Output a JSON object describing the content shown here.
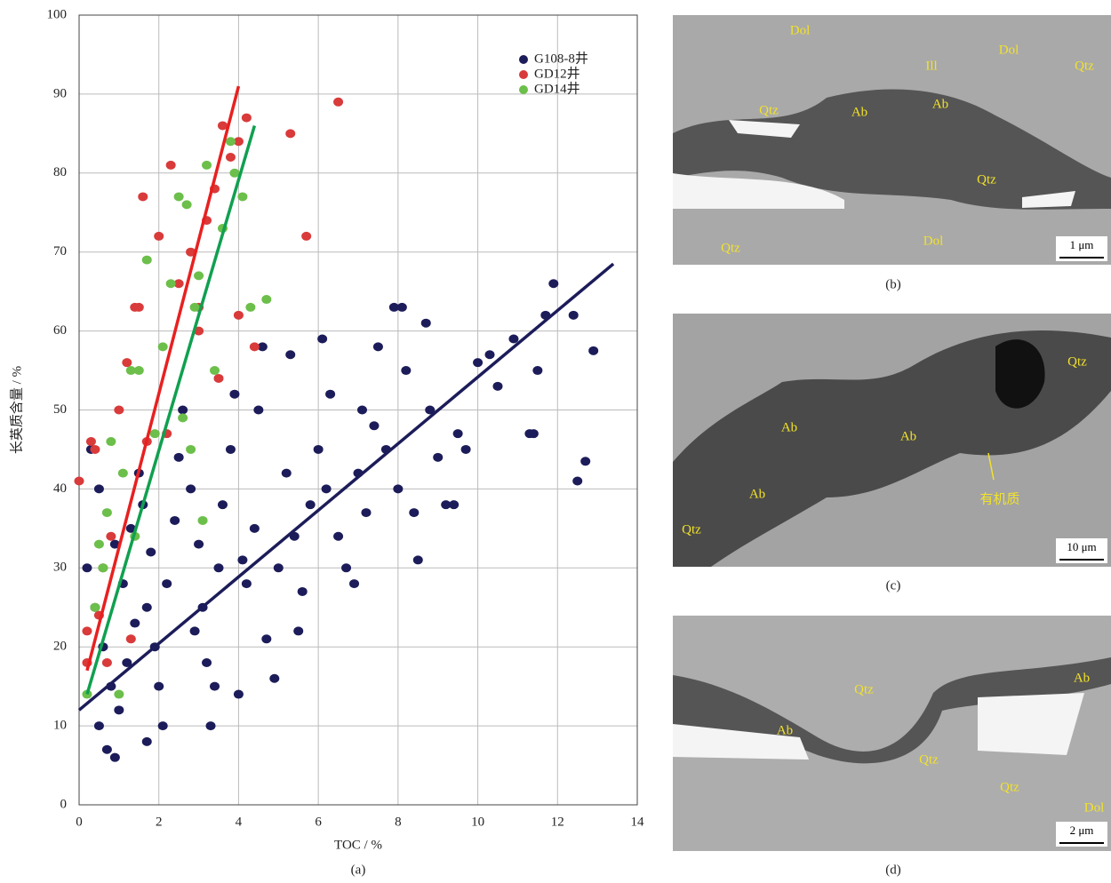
{
  "chart_data": {
    "type": "scatter",
    "x_label": "TOC / %",
    "y_label": "长英质含量 / %",
    "caption": "(a)",
    "xlim": [
      0,
      14
    ],
    "xticks": [
      0,
      2,
      4,
      6,
      8,
      10,
      12,
      14
    ],
    "ylim": [
      0,
      100
    ],
    "yticks": [
      0,
      10,
      20,
      30,
      40,
      50,
      60,
      70,
      80,
      90,
      100
    ],
    "grid": true,
    "legend": "upper right",
    "series": [
      {
        "name": "G108-8井",
        "color": "#1c1c5a",
        "x": [
          0.3,
          0.5,
          0.2,
          0.4,
          0.6,
          0.8,
          0.5,
          0.7,
          0.9,
          1.0,
          1.2,
          1.1,
          1.3,
          1.5,
          1.6,
          1.8,
          1.7,
          1.9,
          2.0,
          1.7,
          2.1,
          2.2,
          2.4,
          2.5,
          2.6,
          2.8,
          3.0,
          3.1,
          3.2,
          3.4,
          3.5,
          3.6,
          3.8,
          3.9,
          4.0,
          4.2,
          4.4,
          4.5,
          4.6,
          4.7,
          4.9,
          5.0,
          5.2,
          5.3,
          5.5,
          5.6,
          5.8,
          6.0,
          6.1,
          6.3,
          6.5,
          6.7,
          6.9,
          7.0,
          7.2,
          7.4,
          7.5,
          7.7,
          7.9,
          8.0,
          8.2,
          8.4,
          8.5,
          8.7,
          8.8,
          9.0,
          9.2,
          9.4,
          9.7,
          10.0,
          10.3,
          10.5,
          10.9,
          11.3,
          11.4,
          11.5,
          11.7,
          11.9,
          12.4,
          12.5,
          12.7,
          12.9,
          6.2,
          5.4,
          4.1,
          2.9,
          3.3,
          1.4,
          0.9,
          7.1,
          8.1,
          9.5
        ],
        "values": [
          45,
          40,
          30,
          25,
          20,
          15,
          10,
          7,
          6,
          12,
          18,
          28,
          35,
          42,
          38,
          32,
          25,
          20,
          15,
          8,
          10,
          28,
          36,
          44,
          50,
          40,
          33,
          25,
          18,
          15,
          30,
          38,
          45,
          52,
          14,
          28,
          35,
          50,
          58,
          21,
          16,
          30,
          42,
          57,
          22,
          27,
          38,
          45,
          59,
          52,
          34,
          30,
          28,
          42,
          37,
          48,
          58,
          45,
          63,
          40,
          55,
          37,
          31,
          61,
          50,
          44,
          38,
          38,
          45,
          56,
          57,
          53,
          59,
          47,
          47,
          55,
          62,
          66,
          62,
          41,
          43.5,
          57.5,
          40,
          34,
          31,
          22,
          10,
          23,
          33,
          50,
          63,
          47
        ],
        "trendline": {
          "x": [
            0,
            13.4
          ],
          "values": [
            12,
            68.5
          ]
        }
      },
      {
        "name": "GD12井",
        "color": "#d93a3a",
        "x": [
          0,
          0.3,
          0.4,
          0.2,
          0.5,
          0.6,
          0.8,
          1.0,
          1.2,
          1.4,
          1.6,
          1.5,
          2.0,
          2.3,
          2.5,
          2.8,
          3.0,
          3.2,
          3.4,
          3.6,
          3.8,
          4.0,
          4.2,
          5.3,
          5.7,
          6.5,
          4.0,
          4.4,
          3.5,
          3.0,
          2.2,
          1.7,
          1.3,
          0.2,
          0.7
        ],
        "values": [
          41,
          46,
          45,
          22,
          24,
          30,
          34,
          50,
          56,
          63,
          77,
          63,
          72,
          81,
          66,
          70,
          63,
          74,
          78,
          86,
          82,
          84,
          87,
          85,
          72,
          89,
          62,
          58,
          54,
          60,
          47,
          46,
          21,
          18,
          18
        ],
        "trendline": {
          "x": [
            0.2,
            4.0
          ],
          "values": [
            17,
            91
          ]
        }
      },
      {
        "name": "GD14井",
        "color": "#6cbf4a",
        "x": [
          0.2,
          0.4,
          0.6,
          0.7,
          0.8,
          1.1,
          1.3,
          1.5,
          1.7,
          1.9,
          2.1,
          2.3,
          2.5,
          2.7,
          2.9,
          3.0,
          3.2,
          3.4,
          3.6,
          3.8,
          3.9,
          4.1,
          4.3,
          4.7,
          2.6,
          2.8,
          3.1,
          1.4,
          1.0,
          0.5
        ],
        "values": [
          14,
          25,
          30,
          37,
          46,
          42,
          55,
          55,
          69,
          47,
          58,
          66,
          77,
          76,
          63,
          67,
          81,
          55,
          73,
          84,
          80,
          77,
          63,
          64,
          49,
          45,
          36,
          34,
          14,
          33
        ],
        "trendline": {
          "x": [
            0.2,
            4.4
          ],
          "values": [
            14,
            86
          ]
        }
      }
    ]
  },
  "panels": [
    {
      "caption": "(b)",
      "scale": "1 μm",
      "labels": [
        "Dol",
        "Dol",
        "Ill",
        "Qtz",
        "Qtz",
        "Ab",
        "Ab",
        "Qtz",
        "Qtz",
        "Dol"
      ]
    },
    {
      "caption": "(c)",
      "scale": "10 μm",
      "labels": [
        "Qtz",
        "Ab",
        "Ab",
        "Ab",
        "Qtz",
        "有机质"
      ]
    },
    {
      "caption": "(d)",
      "scale": "2 μm",
      "labels": [
        "Qtz",
        "Ab",
        "Ab",
        "Qtz",
        "Qtz",
        "Dol"
      ]
    }
  ]
}
